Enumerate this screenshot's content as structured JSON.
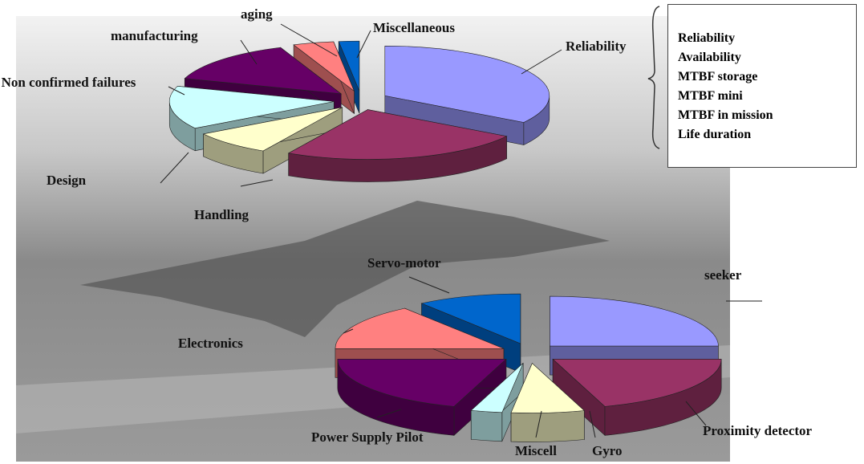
{
  "chart_data": [
    {
      "type": "pie3d",
      "categories": [
        "Reliability",
        "Handling",
        "Design",
        "Non confirmed failures",
        "manufacturing",
        "aging",
        "Miscellaneous"
      ],
      "values": [
        34,
        24,
        8,
        14,
        14,
        4,
        2
      ],
      "colors": [
        "#9999ff",
        "#993366",
        "#ffffcc",
        "#ccffff",
        "#660066",
        "#ff8080",
        "#0066cc"
      ]
    },
    {
      "type": "pie3d",
      "categories": [
        "seeker",
        "Proximity detector",
        "Gyro",
        "Miscell",
        "Power Supply Pilot",
        "Electronics",
        "Servo-motor"
      ],
      "values": [
        25,
        20,
        7,
        3,
        20,
        15,
        10
      ],
      "colors": [
        "#9999ff",
        "#993366",
        "#ffffcc",
        "#ccffff",
        "#660066",
        "#ff8080",
        "#0066cc"
      ]
    }
  ],
  "box": {
    "items": [
      "Reliability",
      "Availability",
      "MTBF storage",
      "MTBF mini",
      "MTBF in mission",
      "Life duration"
    ]
  }
}
